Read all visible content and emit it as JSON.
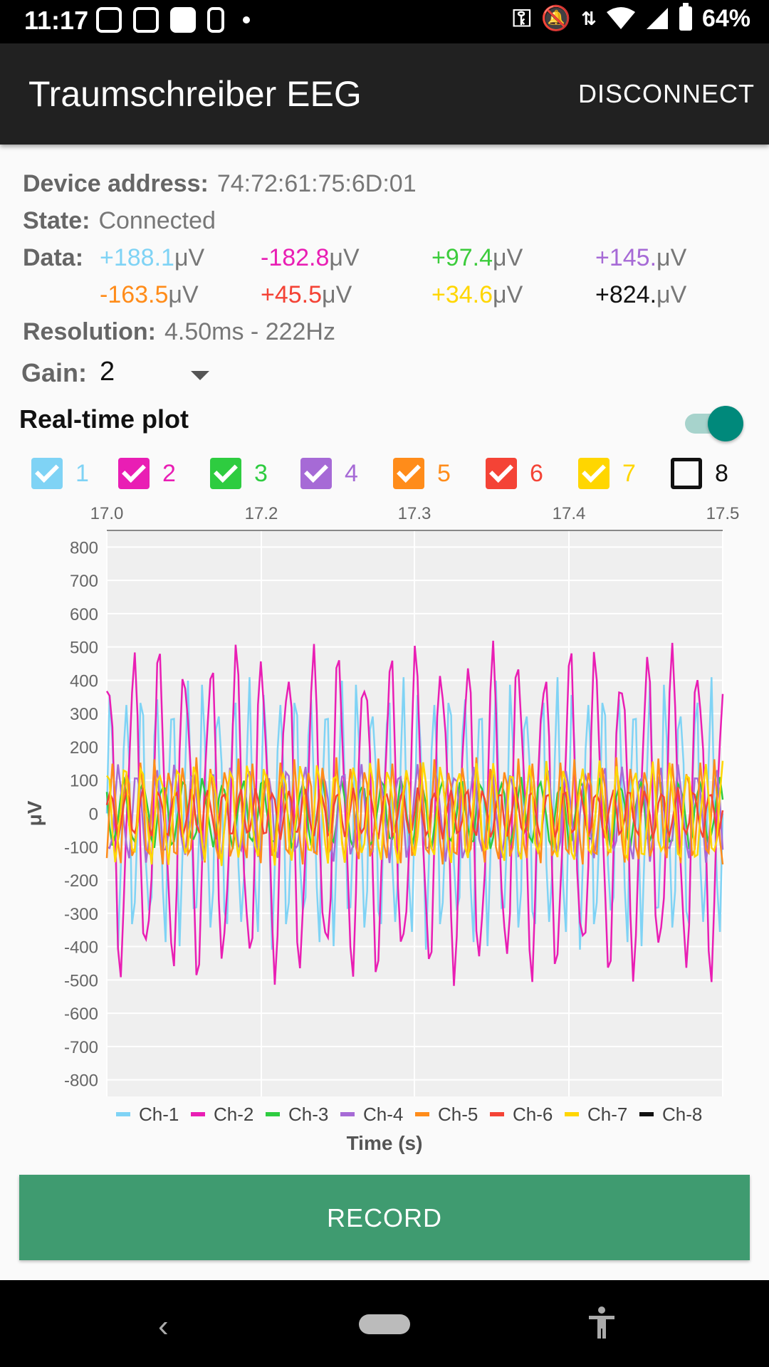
{
  "status_bar": {
    "time": "11:17",
    "battery": "64%"
  },
  "app_bar": {
    "title": "Traumschreiber EEG",
    "disconnect_label": "DISCONNECT"
  },
  "info": {
    "device_address_label": "Device address:",
    "device_address": "74:72:61:75:6D:01",
    "state_label": "State:",
    "state": "Connected",
    "data_label": "Data:",
    "resolution_label": "Resolution:",
    "resolution": "4.50ms - 222Hz",
    "gain_label": "Gain:",
    "gain_value": "2",
    "realtime_label": "Real-time plot",
    "realtime_on": true,
    "unit": "μV"
  },
  "data_values": [
    {
      "value": "+188.1",
      "color": "#7fd3f5"
    },
    {
      "value": "-182.8",
      "color": "#e91eb4"
    },
    {
      "value": "+97.4",
      "color": "#3ccc3c"
    },
    {
      "value": "+145.",
      "color": "#a66ad6"
    },
    {
      "value": "-163.5",
      "color": "#ff8c1a"
    },
    {
      "value": "+45.5",
      "color": "#f44336"
    },
    {
      "value": "+34.6",
      "color": "#ffd600"
    },
    {
      "value": "+824.",
      "color": "#111111"
    }
  ],
  "channels": [
    {
      "label": "1",
      "color": "#7fd3f5",
      "checked": true
    },
    {
      "label": "2",
      "color": "#e91eb4",
      "checked": true
    },
    {
      "label": "3",
      "color": "#2ecc40",
      "checked": true
    },
    {
      "label": "4",
      "color": "#a66ad6",
      "checked": true
    },
    {
      "label": "5",
      "color": "#ff8c1a",
      "checked": true
    },
    {
      "label": "6",
      "color": "#f44336",
      "checked": true
    },
    {
      "label": "7",
      "color": "#ffd600",
      "checked": true
    },
    {
      "label": "8",
      "color": "#111111",
      "checked": false
    }
  ],
  "chart_data": {
    "type": "line",
    "xlabel": "Time (s)",
    "ylabel": "μV",
    "xlim": [
      17.0,
      17.5
    ],
    "ylim": [
      -850,
      850
    ],
    "x_ticks": [
      "17.0",
      "17.2",
      "17.3",
      "17.4",
      "17.5"
    ],
    "y_ticks": [
      800,
      700,
      600,
      500,
      400,
      300,
      200,
      100,
      0,
      -100,
      -200,
      -300,
      -400,
      -500,
      -600,
      -700,
      -800
    ],
    "grid": true,
    "legend_position": "bottom",
    "series": [
      {
        "name": "Ch-1",
        "color": "#7fd3f5",
        "amplitude": 420,
        "cycles": 40,
        "offset": 0
      },
      {
        "name": "Ch-2",
        "color": "#e91eb4",
        "amplitude": 520,
        "cycles": 24,
        "offset": 0
      },
      {
        "name": "Ch-3",
        "color": "#2ecc40",
        "amplitude": 110,
        "cycles": 31,
        "offset": 0
      },
      {
        "name": "Ch-4",
        "color": "#a66ad6",
        "amplitude": 150,
        "cycles": 33,
        "offset": 0
      },
      {
        "name": "Ch-5",
        "color": "#ff8c1a",
        "amplitude": 170,
        "cycles": 44,
        "offset": 0
      },
      {
        "name": "Ch-6",
        "color": "#f44336",
        "amplitude": 80,
        "cycles": 38,
        "offset": 0
      },
      {
        "name": "Ch-7",
        "color": "#ffd600",
        "amplitude": 160,
        "cycles": 35,
        "offset": 0
      },
      {
        "name": "Ch-8",
        "color": "#111111",
        "amplitude": 0,
        "cycles": 0,
        "offset": 0
      }
    ]
  },
  "record_label": "RECORD"
}
